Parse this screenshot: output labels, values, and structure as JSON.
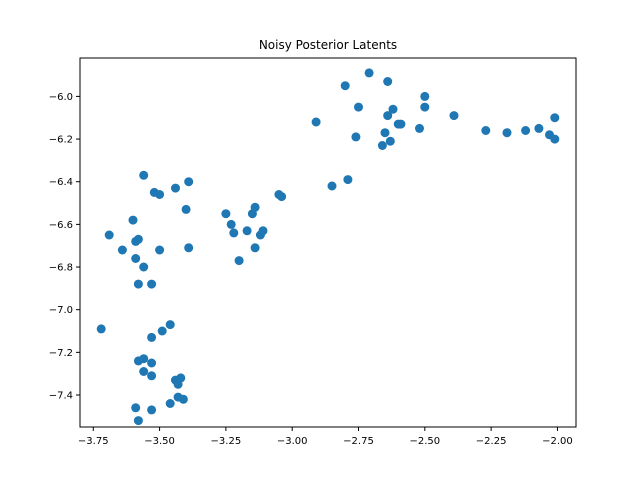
{
  "chart_data": {
    "type": "scatter",
    "title": "Noisy Posterior Latents",
    "xlabel": "",
    "ylabel": "",
    "xlim": [
      -3.8,
      -1.93
    ],
    "ylim": [
      -7.55,
      -5.82
    ],
    "x_ticks": [
      -3.75,
      -3.5,
      -3.25,
      -3.0,
      -2.75,
      -2.5,
      -2.25,
      -2.0
    ],
    "x_tick_labels": [
      "−3.75",
      "−3.50",
      "−3.25",
      "−3.00",
      "−2.75",
      "−2.50",
      "−2.25",
      "−2.00"
    ],
    "y_ticks": [
      -6.0,
      -6.2,
      -6.4,
      -6.6,
      -6.8,
      -7.0,
      -7.2,
      -7.4
    ],
    "y_tick_labels": [
      "−6.0",
      "−6.2",
      "−6.4",
      "−6.6",
      "−6.8",
      "−7.0",
      "−7.2",
      "−7.4"
    ],
    "grid": false,
    "marker_color": "#1f77b4",
    "points": [
      [
        -3.72,
        -7.09
      ],
      [
        -3.69,
        -6.65
      ],
      [
        -3.64,
        -6.72
      ],
      [
        -3.6,
        -6.58
      ],
      [
        -3.59,
        -6.68
      ],
      [
        -3.59,
        -6.76
      ],
      [
        -3.58,
        -6.67
      ],
      [
        -3.58,
        -6.88
      ],
      [
        -3.56,
        -6.37
      ],
      [
        -3.56,
        -6.8
      ],
      [
        -3.53,
        -6.88
      ],
      [
        -3.52,
        -6.45
      ],
      [
        -3.5,
        -6.46
      ],
      [
        -3.5,
        -6.72
      ],
      [
        -3.44,
        -6.43
      ],
      [
        -3.4,
        -6.53
      ],
      [
        -3.39,
        -6.4
      ],
      [
        -3.39,
        -6.71
      ],
      [
        -3.58,
        -7.24
      ],
      [
        -3.56,
        -7.23
      ],
      [
        -3.56,
        -7.29
      ],
      [
        -3.53,
        -7.25
      ],
      [
        -3.53,
        -7.13
      ],
      [
        -3.53,
        -7.31
      ],
      [
        -3.49,
        -7.1
      ],
      [
        -3.46,
        -7.07
      ],
      [
        -3.44,
        -7.33
      ],
      [
        -3.43,
        -7.35
      ],
      [
        -3.43,
        -7.41
      ],
      [
        -3.42,
        -7.32
      ],
      [
        -3.41,
        -7.42
      ],
      [
        -3.46,
        -7.44
      ],
      [
        -3.53,
        -7.47
      ],
      [
        -3.59,
        -7.46
      ],
      [
        -3.58,
        -7.52
      ],
      [
        -3.25,
        -6.55
      ],
      [
        -3.23,
        -6.6
      ],
      [
        -3.22,
        -6.64
      ],
      [
        -3.2,
        -6.77
      ],
      [
        -3.17,
        -6.63
      ],
      [
        -3.15,
        -6.55
      ],
      [
        -3.14,
        -6.52
      ],
      [
        -3.14,
        -6.71
      ],
      [
        -3.12,
        -6.65
      ],
      [
        -3.11,
        -6.63
      ],
      [
        -3.05,
        -6.46
      ],
      [
        -3.04,
        -6.47
      ],
      [
        -2.91,
        -6.12
      ],
      [
        -2.85,
        -6.42
      ],
      [
        -2.79,
        -6.39
      ],
      [
        -2.8,
        -5.95
      ],
      [
        -2.76,
        -6.19
      ],
      [
        -2.75,
        -6.05
      ],
      [
        -2.71,
        -5.89
      ],
      [
        -2.66,
        -6.23
      ],
      [
        -2.65,
        -6.17
      ],
      [
        -2.64,
        -6.09
      ],
      [
        -2.63,
        -6.21
      ],
      [
        -2.64,
        -5.93
      ],
      [
        -2.62,
        -6.06
      ],
      [
        -2.6,
        -6.13
      ],
      [
        -2.59,
        -6.13
      ],
      [
        -2.52,
        -6.15
      ],
      [
        -2.5,
        -6.0
      ],
      [
        -2.5,
        -6.05
      ],
      [
        -2.39,
        -6.09
      ],
      [
        -2.27,
        -6.16
      ],
      [
        -2.19,
        -6.17
      ],
      [
        -2.12,
        -6.16
      ],
      [
        -2.07,
        -6.15
      ],
      [
        -2.03,
        -6.18
      ],
      [
        -2.01,
        -6.1
      ],
      [
        -2.01,
        -6.2
      ]
    ]
  }
}
